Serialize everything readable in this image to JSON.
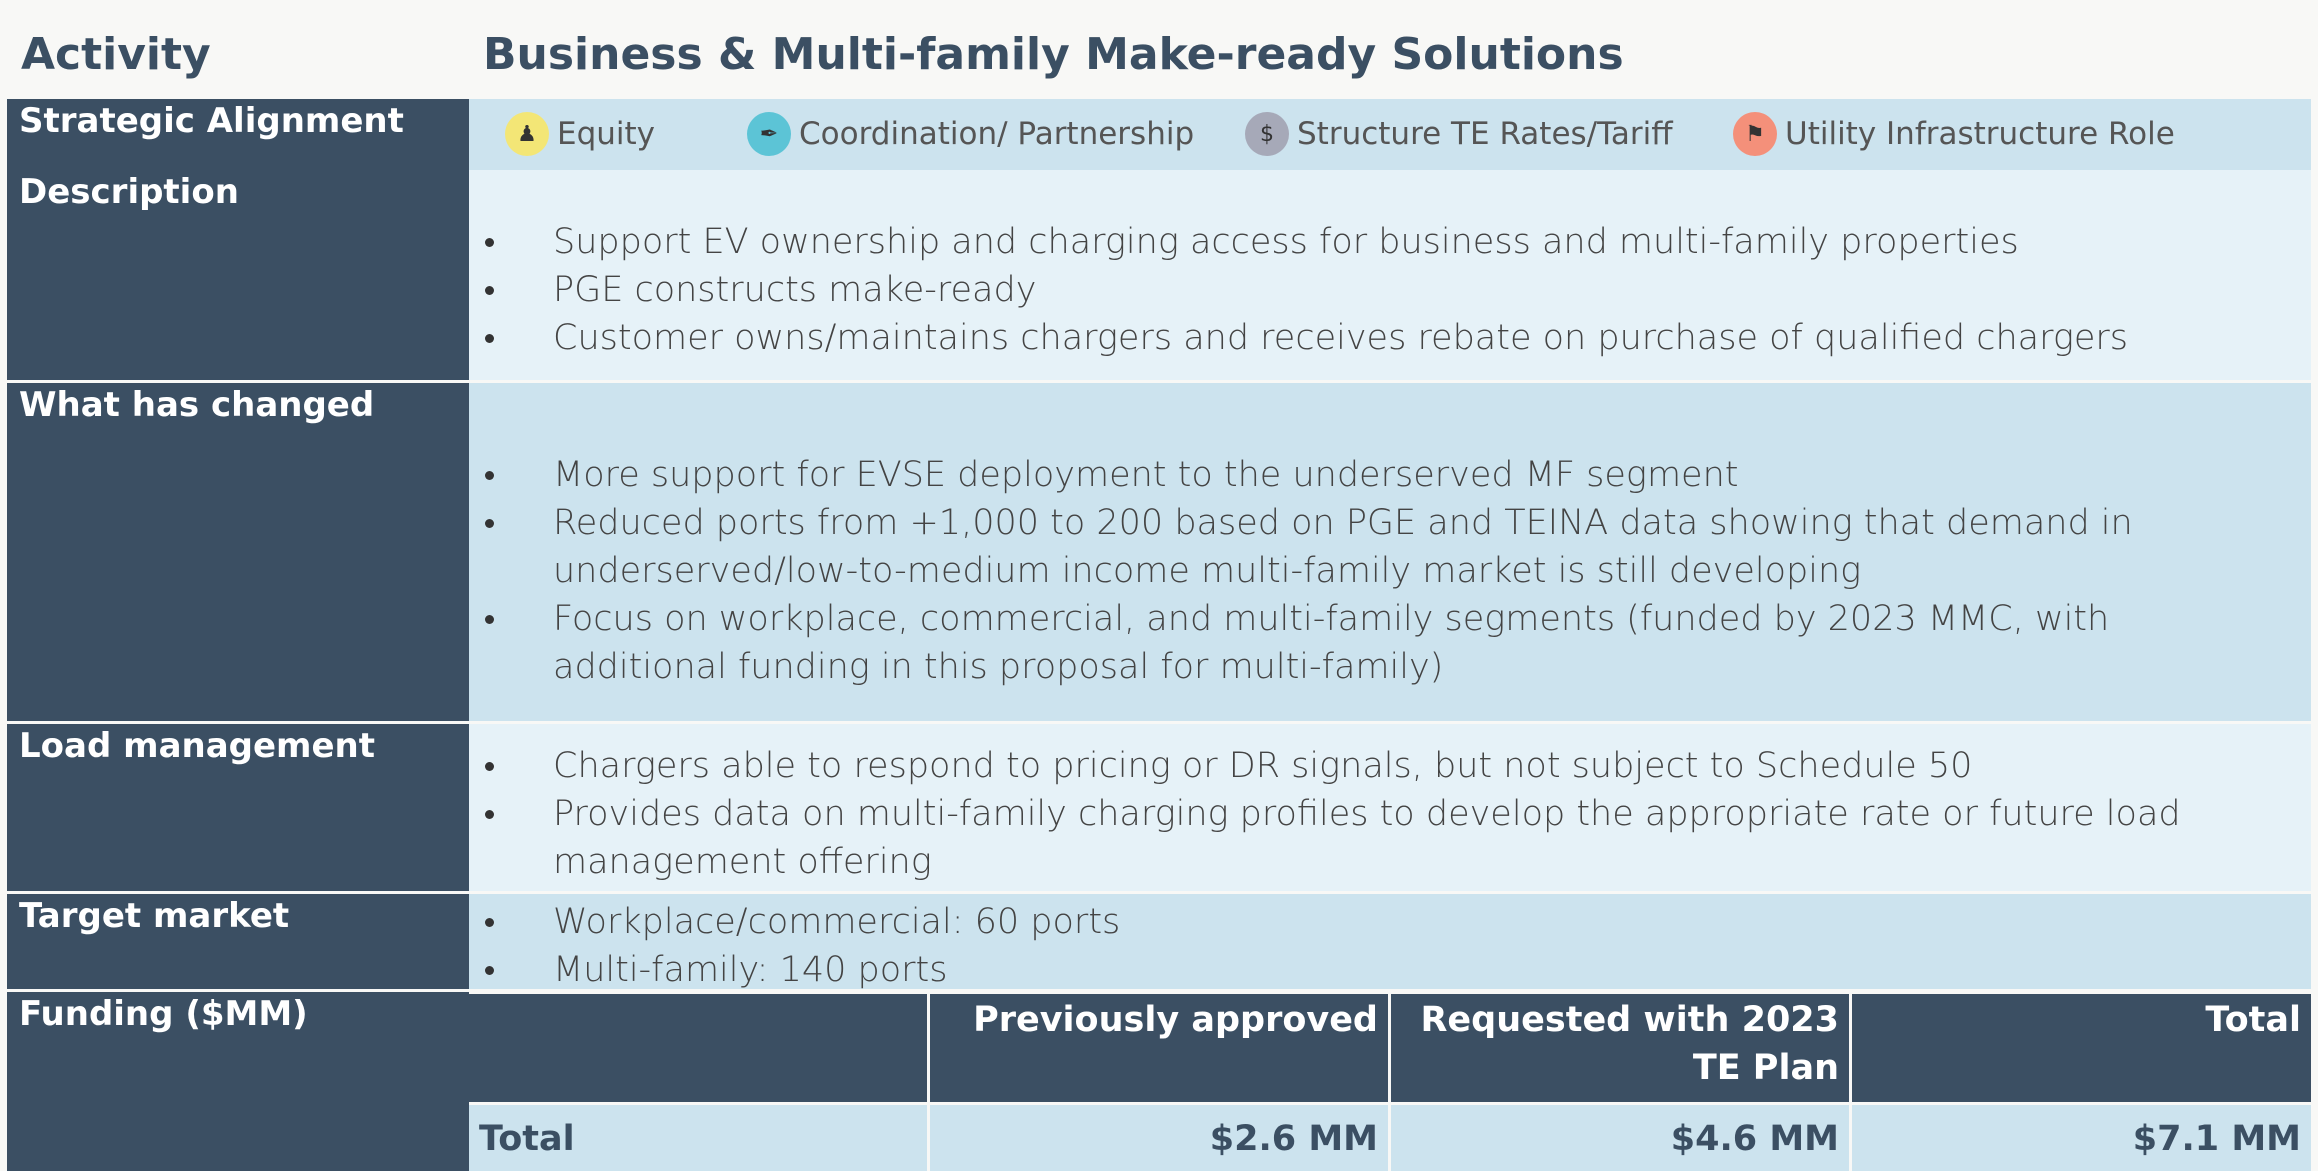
{
  "header": {
    "label": "Activity",
    "title": "Business & Multi-family Make-ready Solutions"
  },
  "strategic_alignment": {
    "label": "Strategic Alignment",
    "items": [
      "Equity",
      "Coordination/ Partnership",
      "Structure TE Rates/Tariff",
      "Utility Infrastructure Role"
    ]
  },
  "sections": [
    {
      "label": "Description",
      "bullets": [
        "Support EV ownership and charging access for business and multi-family properties",
        "PGE constructs make-ready",
        "Customer owns/maintains chargers and receives rebate on purchase of qualified chargers"
      ]
    },
    {
      "label": "What has changed",
      "bullets": [
        "More support for EVSE deployment to the underserved MF segment",
        "Reduced ports from +1,000 to 200 based on PGE and TEINA data showing that demand in underserved/low-to-medium income multi-family market is still developing",
        "Focus on workplace, commercial, and multi-family segments (funded by 2023 MMC, with additional funding in this proposal for multi-family)"
      ]
    },
    {
      "label": "Load management",
      "bullets": [
        "Chargers able to respond to pricing or DR signals, but not subject to Schedule 50",
        "Provides data on multi-family charging profiles to develop the appropriate rate or future load management offering"
      ]
    },
    {
      "label": "Target market",
      "bullets": [
        "Workplace/commercial: 60 ports",
        "Multi-family: 140 ports"
      ]
    }
  ],
  "funding": {
    "label": "Funding ($MM)",
    "columns": [
      "Previously approved",
      "Requested with 2023 TE Plan",
      "Total"
    ],
    "row": {
      "label": "Total",
      "values": [
        "$2.6 MM",
        "$4.6 MM",
        "$7.1 MM"
      ]
    }
  }
}
